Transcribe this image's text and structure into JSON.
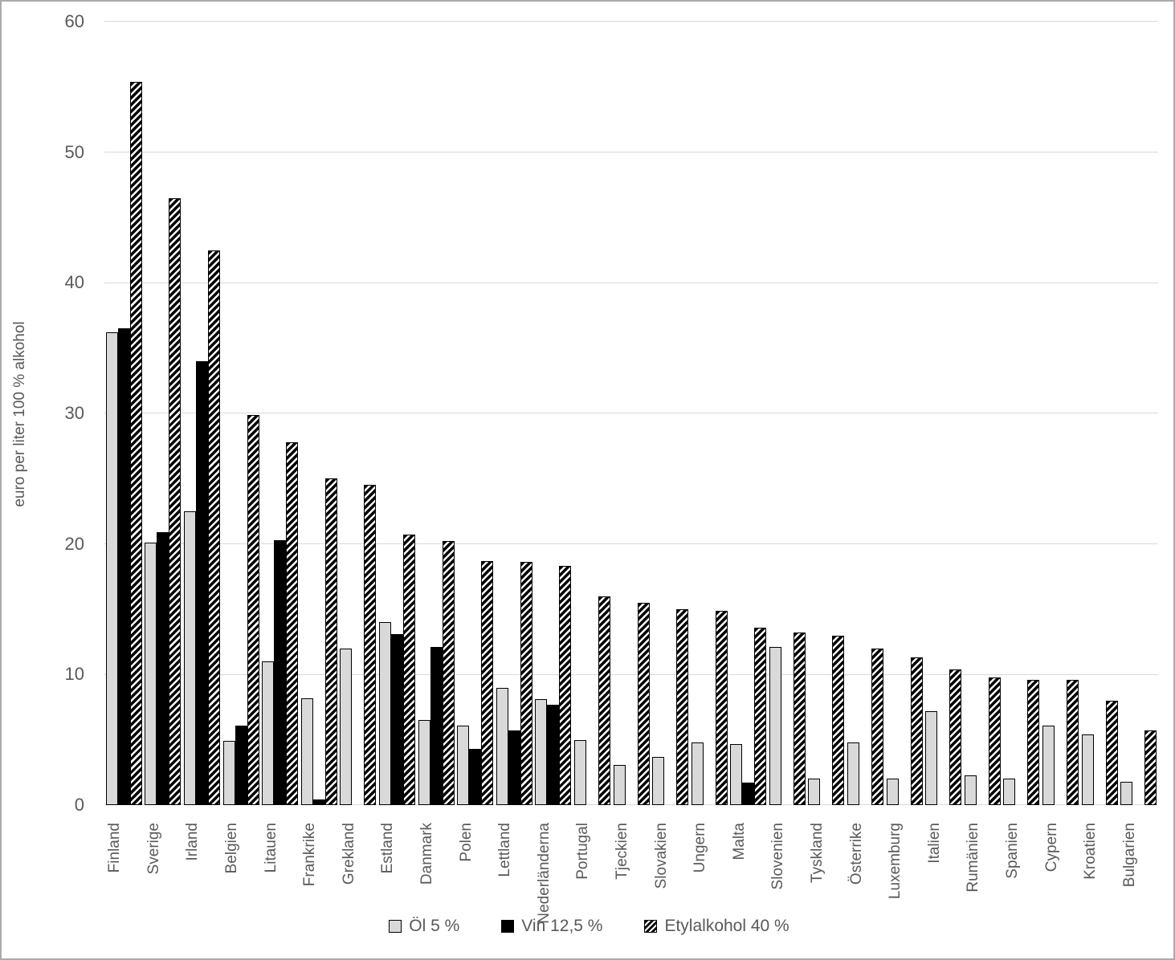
{
  "y_axis_title": "euro per liter 100 % alkohol",
  "chart_data": {
    "type": "bar",
    "title": "",
    "xlabel": "",
    "ylabel": "euro per liter 100 % alkohol",
    "ylim": [
      0,
      60
    ],
    "yticks": [
      0,
      10,
      20,
      30,
      40,
      50,
      60
    ],
    "grid": true,
    "legend_position": "bottom",
    "categories": [
      "Finland",
      "Sverige",
      "Irland",
      "Belgien",
      "Litauen",
      "Frankrike",
      "Grekland",
      "Estland",
      "Danmark",
      "Polen",
      "Lettland",
      "Nederländerna",
      "Portugal",
      "Tjeckien",
      "Slovakien",
      "Ungern",
      "Malta",
      "Slovenien",
      "Tyskland",
      "Österrike",
      "Luxemburg",
      "Italien",
      "Rumänien",
      "Spanien",
      "Cypern",
      "Kroatien",
      "Bulgarien"
    ],
    "series": [
      {
        "name": "Öl 5 %",
        "style": "light-gray",
        "values": [
          36.2,
          20.1,
          22.5,
          4.9,
          11.0,
          8.2,
          12.0,
          14.0,
          6.5,
          6.1,
          9.0,
          8.1,
          5.0,
          3.1,
          3.7,
          4.8,
          4.7,
          12.1,
          2.0,
          4.8,
          2.0,
          7.2,
          2.3,
          2.0,
          6.1,
          5.4,
          1.8
        ]
      },
      {
        "name": "Vin 12,5 %",
        "style": "black",
        "values": [
          36.5,
          20.9,
          34.0,
          6.1,
          20.3,
          0.4,
          0,
          13.1,
          12.1,
          4.3,
          5.7,
          7.7,
          0,
          0,
          0,
          0,
          1.7,
          0,
          0,
          0,
          0,
          0,
          0,
          0,
          0,
          0,
          0
        ]
      },
      {
        "name": "Etylalkohol 40 %",
        "style": "hatched",
        "values": [
          55.4,
          46.5,
          42.5,
          29.9,
          27.8,
          25.0,
          24.5,
          20.7,
          20.2,
          18.7,
          18.6,
          18.3,
          16.0,
          15.5,
          15.0,
          14.9,
          13.6,
          13.2,
          13.0,
          12.0,
          11.3,
          10.4,
          9.8,
          9.6,
          9.6,
          8.0,
          5.7
        ]
      }
    ],
    "colors": {
      "beer_fill": "#d9d9d9",
      "wine_fill": "#000000",
      "spirit_fill": "hatched-black-white",
      "bar_border": "#000000",
      "gridline": "#d9d9d9",
      "axis_text": "#595959",
      "frame_border": "#ababab"
    }
  }
}
